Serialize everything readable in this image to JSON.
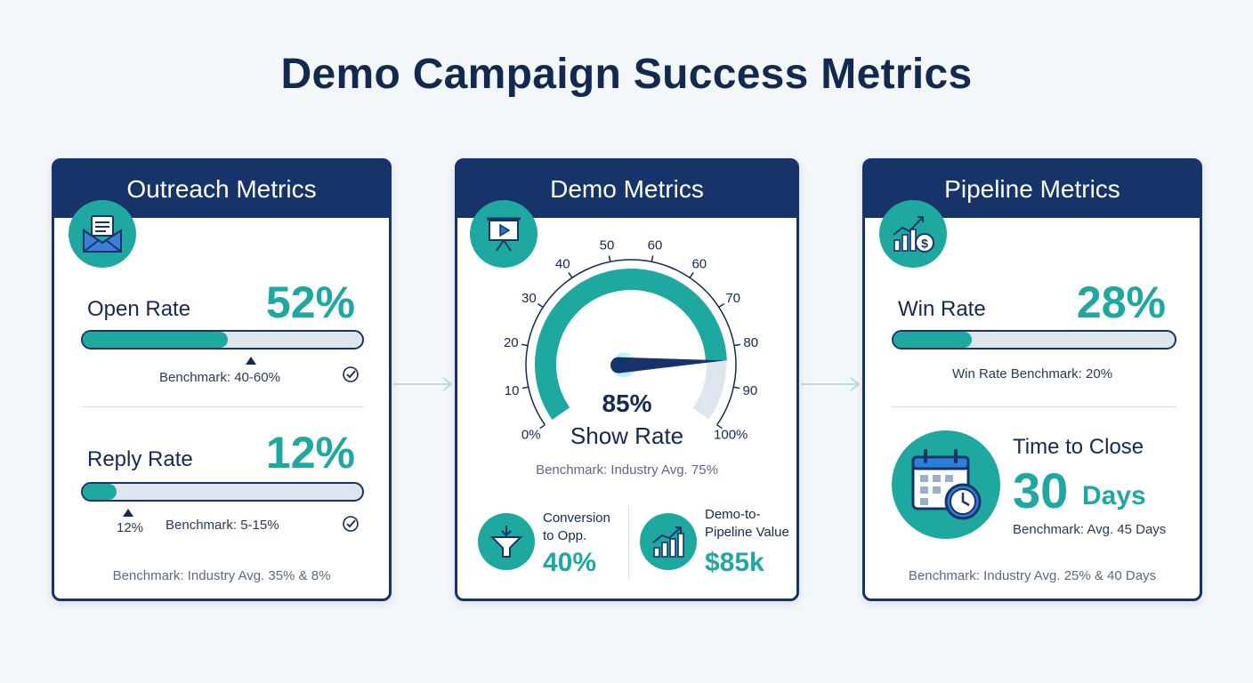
{
  "page": {
    "title": "Demo Campaign Success Metrics"
  },
  "colors": {
    "navy": "#17346a",
    "teal": "#1fa8a0",
    "track": "#dfe5ec",
    "background": "#f4f7fa"
  },
  "outreach": {
    "header": "Outreach Metrics",
    "icon": "envelope-icon",
    "open_rate": {
      "label": "Open Rate",
      "value": "52%",
      "progress": 0.52,
      "benchmark_marker": 0.6,
      "benchmark": "Benchmark: 40-60%"
    },
    "reply_rate": {
      "label": "Reply Rate",
      "value": "12%",
      "progress": 0.12,
      "benchmark_marker": 0.12,
      "marker_label": "12%",
      "benchmark": "Benchmark: 5-15%"
    },
    "footer": "Benchmark: Industry Avg. 35% & 8%"
  },
  "demo": {
    "header": "Demo Metrics",
    "icon": "presentation-screen-icon",
    "gauge": {
      "ticks": [
        "0%",
        "10",
        "20",
        "30",
        "40",
        "50",
        "60",
        "60",
        "70",
        "80",
        "90",
        "100%"
      ],
      "value": 85,
      "value_label": "85%",
      "caption": "Show Rate"
    },
    "benchmark": "Benchmark: Industry Avg. 75%",
    "conversion": {
      "label_line1": "Conversion",
      "label_line2": "to Opp.",
      "value": "40%",
      "icon": "funnel-icon"
    },
    "pipeline_value": {
      "label_line1": "Demo-to-",
      "label_line2": "Pipeline Value",
      "value": "$85k",
      "icon": "growth-chart-icon"
    }
  },
  "pipeline": {
    "header": "Pipeline Metrics",
    "icon": "chart-dollar-icon",
    "win_rate": {
      "label": "Win Rate",
      "value": "28%",
      "progress": 0.28,
      "benchmark": "Win Rate Benchmark: 20%"
    },
    "time_to_close": {
      "label": "Time to Close",
      "number": "30",
      "unit": "Days",
      "benchmark": "Benchmark: Avg. 45 Days",
      "icon": "calendar-clock-icon"
    },
    "footer": "Benchmark: Industry Avg. 25% & 40 Days"
  }
}
